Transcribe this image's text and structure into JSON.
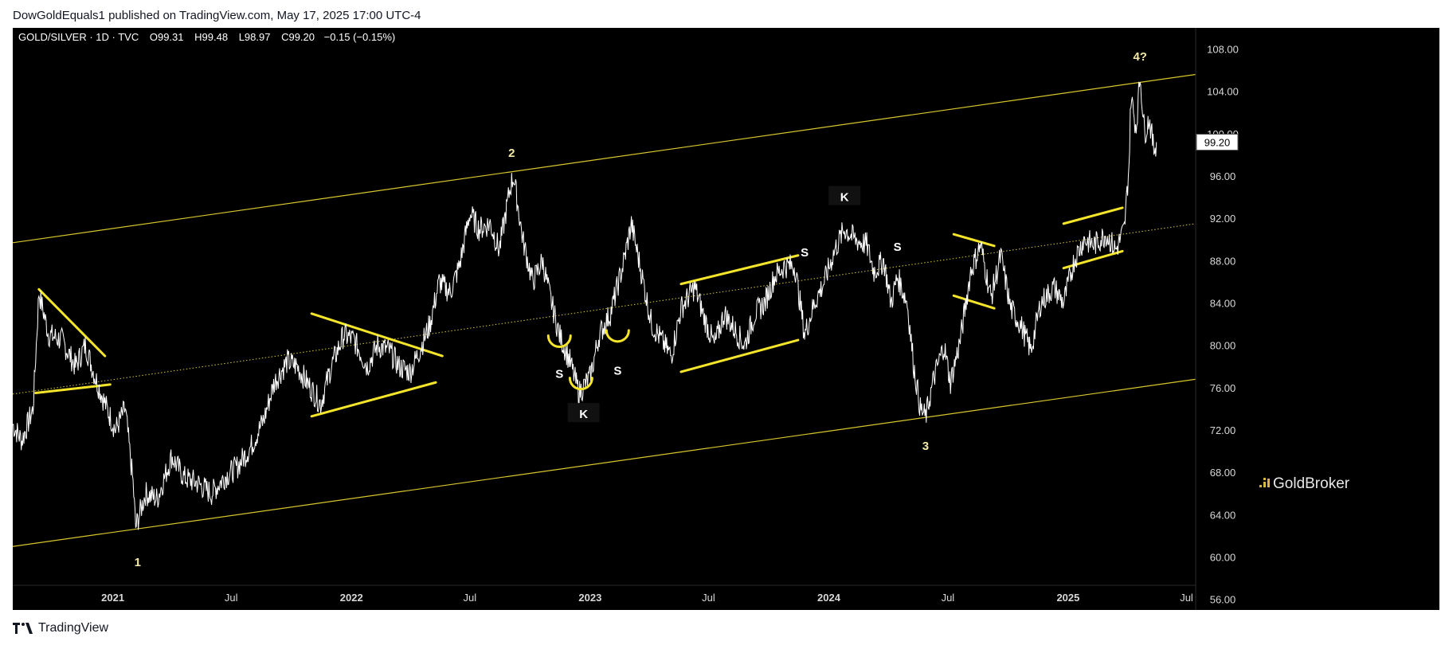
{
  "publisher_line": "DowGoldEquals1 published on TradingView.com, May 17, 2025 17:00 UTC-4",
  "header": {
    "symbol": "GOLD/SILVER · 1D · TVC",
    "open": "O99.31",
    "high": "H99.48",
    "low": "L98.97",
    "close": "C99.20",
    "change": "−0.15 (−0.15%)"
  },
  "footer": {
    "brand": "TradingView"
  },
  "watermark": "GoldBroker",
  "colors": {
    "background": "#000000",
    "price": "#ffffff",
    "annotation": "#f5e52a",
    "channel": "#d9c62c",
    "label_bg": "#ffffff"
  },
  "icons": [
    "tradingview-logo-icon",
    "goldbroker-logo-icon"
  ],
  "chart_data": {
    "type": "line",
    "title": "GOLD/SILVER · 1D · TVC",
    "x_range": [
      "2020-08-01",
      "2025-07-15"
    ],
    "ylim": [
      55,
      110
    ],
    "y_ticks": [
      56,
      60,
      64,
      68,
      72,
      76,
      80,
      84,
      88,
      92,
      96,
      100,
      104,
      108
    ],
    "y_tick_labels": [
      "56.00",
      "60.00",
      "64.00",
      "68.00",
      "72.00",
      "76.00",
      "80.00",
      "84.00",
      "88.00",
      "92.00",
      "96.00",
      "100.00",
      "104.00",
      "108.00"
    ],
    "x_ticks": [
      {
        "date": "2021-01-01",
        "label": "2021",
        "bold": true
      },
      {
        "date": "2021-07-01",
        "label": "Jul",
        "bold": false
      },
      {
        "date": "2022-01-01",
        "label": "2022",
        "bold": true
      },
      {
        "date": "2022-07-01",
        "label": "Jul",
        "bold": false
      },
      {
        "date": "2023-01-01",
        "label": "2023",
        "bold": true
      },
      {
        "date": "2023-07-01",
        "label": "Jul",
        "bold": false
      },
      {
        "date": "2024-01-01",
        "label": "2024",
        "bold": true
      },
      {
        "date": "2024-07-01",
        "label": "Jul",
        "bold": false
      },
      {
        "date": "2025-01-01",
        "label": "2025",
        "bold": true
      },
      {
        "date": "2025-07-01",
        "label": "Jul",
        "bold": false
      }
    ],
    "last_price": 99.2,
    "last_price_label": "99.20",
    "grid": false,
    "series": [
      {
        "points": [
          [
            "2020-08-01",
            72.5
          ],
          [
            "2020-08-15",
            71.0
          ],
          [
            "2020-09-01",
            74.0
          ],
          [
            "2020-09-10",
            85.0
          ],
          [
            "2020-09-25",
            81.0
          ],
          [
            "2020-10-15",
            80.5
          ],
          [
            "2020-11-05",
            78.0
          ],
          [
            "2020-11-20",
            80.0
          ],
          [
            "2020-12-05",
            77.0
          ],
          [
            "2020-12-20",
            74.5
          ],
          [
            "2021-01-05",
            72.0
          ],
          [
            "2021-01-20",
            74.0
          ],
          [
            "2021-02-01",
            67.0
          ],
          [
            "2021-02-05",
            62.8
          ],
          [
            "2021-02-20",
            66.0
          ],
          [
            "2021-03-10",
            65.5
          ],
          [
            "2021-04-01",
            69.5
          ],
          [
            "2021-04-20",
            67.5
          ],
          [
            "2021-05-10",
            67.0
          ],
          [
            "2021-06-01",
            66.0
          ],
          [
            "2021-06-20",
            67.5
          ],
          [
            "2021-07-10",
            68.5
          ],
          [
            "2021-08-01",
            70.5
          ],
          [
            "2021-08-20",
            73.0
          ],
          [
            "2021-09-05",
            76.5
          ],
          [
            "2021-09-25",
            78.5
          ],
          [
            "2021-10-10",
            78.0
          ],
          [
            "2021-10-25",
            76.5
          ],
          [
            "2021-11-15",
            74.5
          ],
          [
            "2021-12-01",
            78.0
          ],
          [
            "2021-12-20",
            81.0
          ],
          [
            "2022-01-05",
            80.5
          ],
          [
            "2022-01-25",
            78.0
          ],
          [
            "2022-02-10",
            80.0
          ],
          [
            "2022-02-28",
            79.5
          ],
          [
            "2022-03-15",
            78.0
          ],
          [
            "2022-04-01",
            77.5
          ],
          [
            "2022-04-15",
            79.5
          ],
          [
            "2022-05-01",
            82.0
          ],
          [
            "2022-05-15",
            86.0
          ],
          [
            "2022-06-01",
            85.0
          ],
          [
            "2022-06-15",
            87.5
          ],
          [
            "2022-07-01",
            92.5
          ],
          [
            "2022-07-15",
            91.0
          ],
          [
            "2022-08-01",
            91.5
          ],
          [
            "2022-08-15",
            89.0
          ],
          [
            "2022-09-01",
            95.0
          ],
          [
            "2022-09-06",
            96.0
          ],
          [
            "2022-09-20",
            90.0
          ],
          [
            "2022-10-05",
            86.0
          ],
          [
            "2022-10-20",
            88.0
          ],
          [
            "2022-11-01",
            84.5
          ],
          [
            "2022-11-15",
            81.0
          ],
          [
            "2022-12-01",
            78.5
          ],
          [
            "2022-12-15",
            75.5
          ],
          [
            "2023-01-01",
            77.0
          ],
          [
            "2023-01-15",
            81.0
          ],
          [
            "2023-02-01",
            83.0
          ],
          [
            "2023-02-20",
            87.5
          ],
          [
            "2023-03-05",
            91.5
          ],
          [
            "2023-03-20",
            87.0
          ],
          [
            "2023-04-05",
            82.0
          ],
          [
            "2023-04-20",
            80.5
          ],
          [
            "2023-05-05",
            79.0
          ],
          [
            "2023-05-20",
            83.5
          ],
          [
            "2023-06-10",
            85.5
          ],
          [
            "2023-06-25",
            82.5
          ],
          [
            "2023-07-10",
            80.0
          ],
          [
            "2023-07-25",
            83.0
          ],
          [
            "2023-08-10",
            81.5
          ],
          [
            "2023-08-25",
            80.0
          ],
          [
            "2023-09-10",
            83.0
          ],
          [
            "2023-09-25",
            84.0
          ],
          [
            "2023-10-10",
            86.5
          ],
          [
            "2023-10-25",
            87.5
          ],
          [
            "2023-11-10",
            87.5
          ],
          [
            "2023-11-25",
            81.0
          ],
          [
            "2023-12-10",
            84.0
          ],
          [
            "2023-12-25",
            86.0
          ],
          [
            "2024-01-10",
            89.0
          ],
          [
            "2024-01-25",
            91.0
          ],
          [
            "2024-02-10",
            90.0
          ],
          [
            "2024-02-28",
            89.5
          ],
          [
            "2024-03-10",
            87.0
          ],
          [
            "2024-03-25",
            88.0
          ],
          [
            "2024-04-05",
            84.0
          ],
          [
            "2024-04-15",
            86.5
          ],
          [
            "2024-04-30",
            84.0
          ],
          [
            "2024-05-10",
            78.0
          ],
          [
            "2024-05-20",
            74.0
          ],
          [
            "2024-05-28",
            73.2
          ],
          [
            "2024-06-10",
            77.0
          ],
          [
            "2024-06-25",
            80.0
          ],
          [
            "2024-07-05",
            76.5
          ],
          [
            "2024-07-20",
            80.5
          ],
          [
            "2024-08-05",
            87.0
          ],
          [
            "2024-08-20",
            89.5
          ],
          [
            "2024-09-05",
            84.5
          ],
          [
            "2024-09-20",
            88.5
          ],
          [
            "2024-10-05",
            83.5
          ],
          [
            "2024-10-20",
            82.0
          ],
          [
            "2024-11-05",
            79.5
          ],
          [
            "2024-11-20",
            84.0
          ],
          [
            "2024-12-10",
            85.5
          ],
          [
            "2024-12-25",
            84.0
          ],
          [
            "2025-01-10",
            88.0
          ],
          [
            "2025-01-25",
            90.0
          ],
          [
            "2025-02-10",
            89.5
          ],
          [
            "2025-02-28",
            90.5
          ],
          [
            "2025-03-15",
            89.0
          ],
          [
            "2025-03-28",
            91.0
          ],
          [
            "2025-04-04",
            97.0
          ],
          [
            "2025-04-07",
            103.5
          ],
          [
            "2025-04-15",
            100.5
          ],
          [
            "2025-04-21",
            105.5
          ],
          [
            "2025-04-28",
            100.0
          ],
          [
            "2025-05-05",
            101.5
          ],
          [
            "2025-05-12",
            98.5
          ],
          [
            "2025-05-16",
            99.2
          ]
        ]
      }
    ],
    "channel_lines": [
      {
        "role": "upper",
        "from": [
          "2020-08-01",
          89.7
        ],
        "to": [
          "2025-07-15",
          105.6
        ]
      },
      {
        "role": "middle",
        "from": [
          "2020-08-01",
          75.4
        ],
        "to": [
          "2025-07-15",
          91.5
        ],
        "dotted": true
      },
      {
        "role": "lower",
        "from": [
          "2020-08-01",
          61.0
        ],
        "to": [
          "2025-07-15",
          76.8
        ]
      }
    ],
    "pattern_lines": [
      {
        "from": [
          "2020-09-10",
          85.3
        ],
        "to": [
          "2020-12-20",
          79.0
        ]
      },
      {
        "from": [
          "2020-09-05",
          75.5
        ],
        "to": [
          "2020-12-28",
          76.3
        ]
      },
      {
        "from": [
          "2021-11-01",
          83.0
        ],
        "to": [
          "2022-05-20",
          79.0
        ]
      },
      {
        "from": [
          "2021-11-01",
          73.3
        ],
        "to": [
          "2022-05-10",
          76.5
        ]
      },
      {
        "from": [
          "2023-05-20",
          85.8
        ],
        "to": [
          "2023-11-15",
          88.5
        ]
      },
      {
        "from": [
          "2023-05-20",
          77.5
        ],
        "to": [
          "2023-11-15",
          80.5
        ]
      },
      {
        "from": [
          "2024-07-10",
          90.5
        ],
        "to": [
          "2024-09-10",
          89.4
        ]
      },
      {
        "from": [
          "2024-07-10",
          84.7
        ],
        "to": [
          "2024-09-10",
          83.5
        ]
      },
      {
        "from": [
          "2024-12-25",
          91.5
        ],
        "to": [
          "2025-03-25",
          93.0
        ]
      },
      {
        "from": [
          "2024-12-25",
          87.3
        ],
        "to": [
          "2025-03-25",
          88.9
        ]
      }
    ],
    "arcs": [
      {
        "center": [
          "2022-11-15",
          80.5
        ]
      },
      {
        "center": [
          "2023-02-12",
          81.0
        ]
      },
      {
        "center": [
          "2022-12-18",
          76.5
        ]
      }
    ],
    "annotations": [
      {
        "text": "1",
        "at": [
          "2021-02-08",
          59.5
        ]
      },
      {
        "text": "2",
        "at": [
          "2022-09-03",
          98.2
        ]
      },
      {
        "text": "3",
        "at": [
          "2024-05-28",
          70.5
        ]
      },
      {
        "text": "4?",
        "at": [
          "2025-04-21",
          107.3
        ]
      },
      {
        "text": "S",
        "at": [
          "2022-11-15",
          77.3
        ]
      },
      {
        "text": "S",
        "at": [
          "2023-02-12",
          77.6
        ]
      },
      {
        "text": "S",
        "at": [
          "2023-11-25",
          88.8
        ]
      },
      {
        "text": "S",
        "at": [
          "2024-04-15",
          89.3
        ]
      },
      {
        "text": "K",
        "at": [
          "2022-12-22",
          73.5
        ],
        "boxed": true
      },
      {
        "text": "K",
        "at": [
          "2024-01-25",
          94.0
        ],
        "boxed": true
      }
    ]
  }
}
